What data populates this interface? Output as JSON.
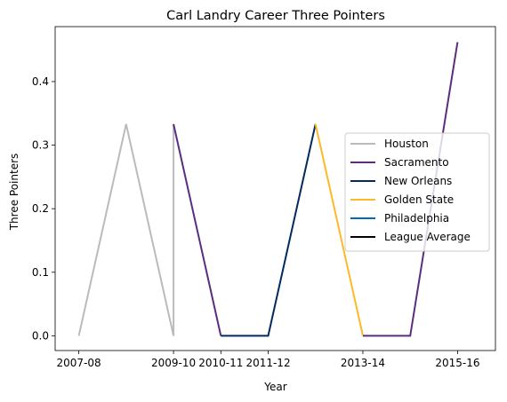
{
  "chart_data": {
    "type": "line",
    "title": "Carl Landry Career Three Pointers",
    "xlabel": "Year",
    "ylabel": "Three Pointers",
    "x_ticks": [
      "2007-08",
      "2009-10",
      "2010-11",
      "2011-12",
      "2013-14",
      "2015-16"
    ],
    "y_ticks": [
      "0.0",
      "0.1",
      "0.2",
      "0.3",
      "0.4"
    ],
    "ylim": [
      -0.0232,
      0.4865
    ],
    "legend_position": "right",
    "series": [
      {
        "name": "Houston",
        "color": "#bbbbbb",
        "points": [
          {
            "x": "2007-08",
            "y": 0.0
          },
          {
            "x": "2008-09",
            "y": 0.333
          },
          {
            "x": "2009-10",
            "y": 0.0
          },
          {
            "x": "2009-10",
            "y": 0.333
          }
        ]
      },
      {
        "name": "Sacramento",
        "color": "#5a2d81",
        "points": [
          {
            "x": "2009-10",
            "y": 0.333
          },
          {
            "x": "2010-11",
            "y": 0.0
          }
        ]
      },
      {
        "name": "New Orleans",
        "color": "#002b5c",
        "points": [
          {
            "x": "2010-11",
            "y": 0.0
          },
          {
            "x": "2011-12",
            "y": 0.0
          },
          {
            "x": "2012-13",
            "y": 0.333
          }
        ]
      },
      {
        "name": "Golden State",
        "color": "#fdb927",
        "points": [
          {
            "x": "2012-13",
            "y": 0.333
          },
          {
            "x": "2013-14",
            "y": 0.0
          }
        ]
      },
      {
        "name": "Sacramento",
        "color": "#5a2d81",
        "legend": false,
        "points": [
          {
            "x": "2013-14",
            "y": 0.0
          },
          {
            "x": "2014-15",
            "y": 0.0
          },
          {
            "x": "2015-16",
            "y": 0.462
          }
        ]
      },
      {
        "name": "Philadelphia",
        "color": "#006bb6",
        "points": []
      },
      {
        "name": "League Average",
        "color": "#000000",
        "points": []
      }
    ],
    "legend": [
      "Houston",
      "Sacramento",
      "New Orleans",
      "Golden State",
      "Philadelphia",
      "League Average"
    ]
  }
}
